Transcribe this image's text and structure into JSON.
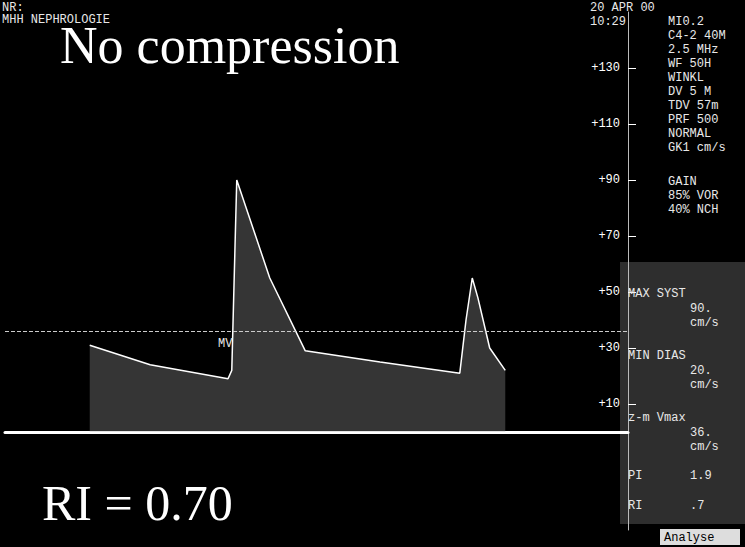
{
  "chart_data": {
    "type": "line",
    "title": "No compression",
    "subtitle": "RI = 0.70",
    "annotations": [
      "NR:",
      "MHH NEPHROLOGIE",
      "20 APR 00",
      "10:29",
      "MI0.2",
      "C4-2 40M",
      "2.5 MHz",
      "WF 50H",
      "WINKL",
      "DV 5 M",
      "TDV 57m",
      "PRF 500",
      "NORMAL",
      "GK1 cm/s",
      "GAIN",
      "85% VOR",
      "40% NCH",
      "MAX SYST",
      "90.",
      "cm/s",
      "MIN DIAS",
      "20.",
      "cm/s",
      "z-m Vmax",
      "36.",
      "cm/s",
      "PI",
      "1.9",
      "RI",
      ".7",
      "Analyse",
      "MV"
    ],
    "x": [
      13.6,
      23.3,
      35.8,
      36.4,
      37.2,
      42.5,
      48.2,
      60.2,
      73.0,
      74.0,
      75.0,
      75.9,
      77.8,
      80.3
    ],
    "values": [
      31,
      24,
      19,
      22,
      90,
      55,
      29,
      25,
      21,
      40,
      55,
      48,
      30,
      22
    ],
    "color": "#ffffff",
    "reference_line": 36,
    "xlim": [
      0,
      100
    ],
    "ylim": [
      -35,
      150
    ],
    "yticks": [
      {
        "value": 10,
        "label": "+10"
      },
      {
        "value": 30,
        "label": "+30"
      },
      {
        "value": 50,
        "label": "+50"
      },
      {
        "value": 70,
        "label": "+70"
      },
      {
        "value": 90,
        "label": "+90"
      },
      {
        "value": 110,
        "label": "+110"
      },
      {
        "value": 130,
        "label": "+130"
      }
    ],
    "tick_labels": "y",
    "grid": false,
    "marker": "none",
    "line_style": "solid"
  }
}
